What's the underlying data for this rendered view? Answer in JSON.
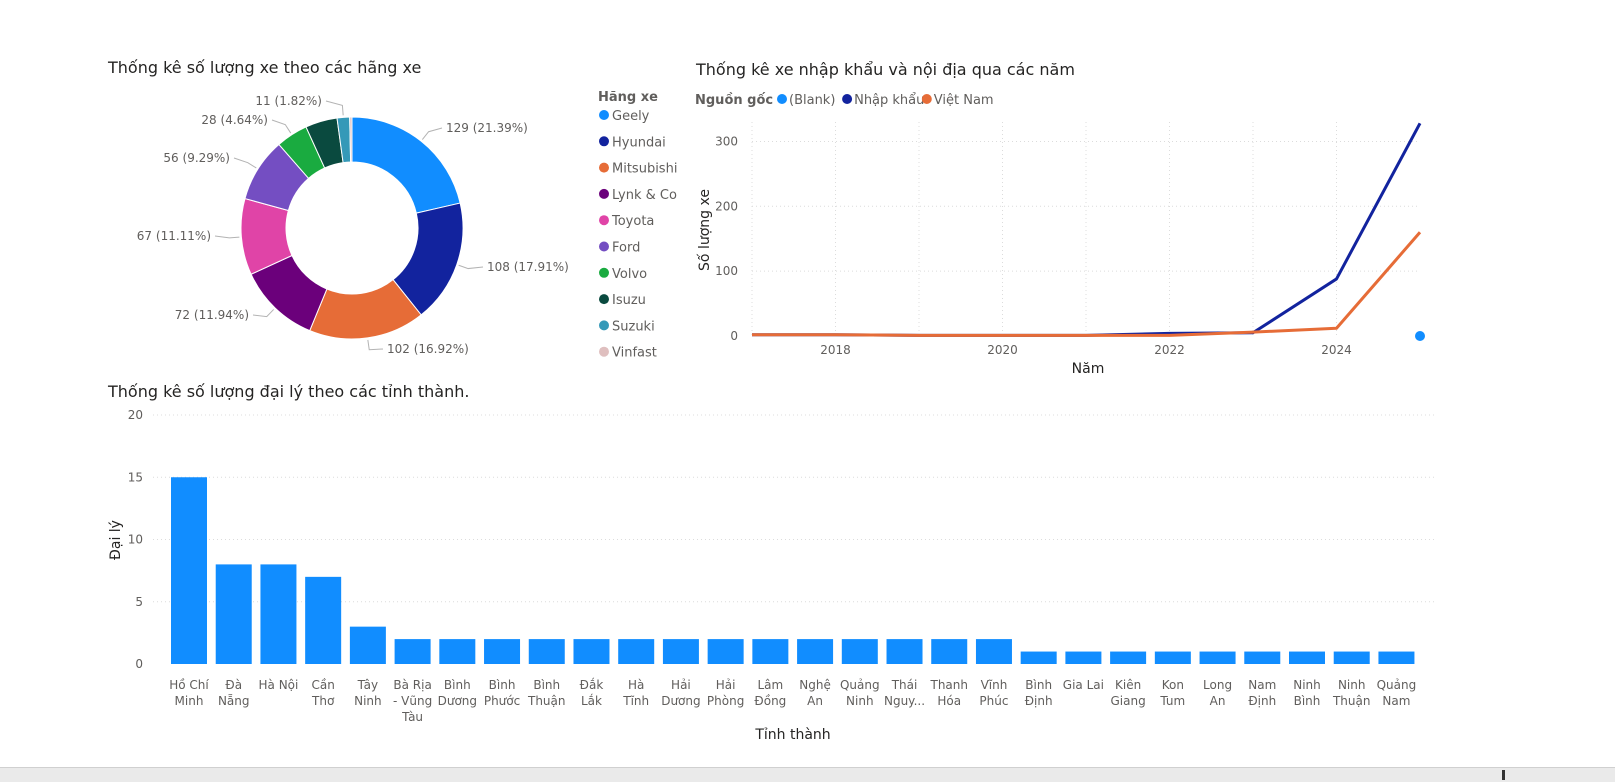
{
  "donut_title": "Thống kê số lượng xe theo các hãng xe",
  "line_title": "Thống kê xe nhập khẩu và nội địa qua các năm",
  "bar_title": "Thống kê số lượng đại lý theo các tỉnh thành.",
  "chart_data": [
    {
      "type": "pie",
      "title": "Thống kê số lượng xe theo các hãng xe",
      "legend_title": "Hãng xe",
      "legend_position": "right",
      "slices": [
        {
          "name": "Geely",
          "value": 129,
          "label": "129 (21.39%)",
          "color": "#118DFF"
        },
        {
          "name": "Hyundai",
          "value": 108,
          "label": "108 (17.91%)",
          "color": "#12239E"
        },
        {
          "name": "Mitsubishi",
          "value": 102,
          "label": "102 (16.92%)",
          "color": "#E66C37"
        },
        {
          "name": "Lynk & Co",
          "value": 72,
          "label": "72 (11.94%)",
          "color": "#6B007B"
        },
        {
          "name": "Toyota",
          "value": 67,
          "label": "67 (11.11%)",
          "color": "#E044A7"
        },
        {
          "name": "Ford",
          "value": 56,
          "label": "56 (9.29%)",
          "color": "#744EC2"
        },
        {
          "name": "Volvo",
          "value": 28,
          "label": "28 (4.64%)",
          "color": "#1AAB40"
        },
        {
          "name": "Isuzu",
          "value": 28,
          "label": "",
          "color": "#0A4A3F"
        },
        {
          "name": "Suzuki",
          "value": 11,
          "label": "11 (1.82%)",
          "color": "#3599B8"
        },
        {
          "name": "Vinfast",
          "value": 2,
          "label": "",
          "color": "#DFBFBF"
        }
      ]
    },
    {
      "type": "line",
      "title": "Thống kê xe nhập khẩu và nội địa qua các năm",
      "xlabel": "Năm",
      "ylabel": "Số lượng xe",
      "legend_title": "Nguồn gốc",
      "legend_position": "top-left",
      "xlim": [
        2017,
        2025
      ],
      "ylim": [
        0,
        330
      ],
      "xticks": [
        "2018",
        "2020",
        "2022",
        "2024"
      ],
      "xtick_values": [
        2018,
        2020,
        2022,
        2024
      ],
      "yticks": [
        "0",
        "100",
        "200",
        "300"
      ],
      "ytick_values": [
        0,
        100,
        200,
        300
      ],
      "grid": true,
      "series": [
        {
          "name": "(Blank)",
          "color": "#118DFF",
          "x": [
            2025
          ],
          "y": [
            0
          ],
          "marker_only": true
        },
        {
          "name": "Nhập khẩu",
          "color": "#12239E",
          "x": [
            2017,
            2018,
            2019,
            2020,
            2021,
            2022,
            2023,
            2024,
            2025
          ],
          "y": [
            2,
            2,
            1,
            1,
            1,
            4,
            5,
            88,
            328
          ]
        },
        {
          "name": "Việt Nam",
          "color": "#E66C37",
          "x": [
            2017,
            2018,
            2019,
            2020,
            2021,
            2022,
            2023,
            2024,
            2025
          ],
          "y": [
            2,
            2,
            1,
            1,
            1,
            1,
            6,
            12,
            160
          ]
        }
      ]
    },
    {
      "type": "bar",
      "title": "Thống kê số lượng đại lý theo các tỉnh thành.",
      "xlabel": "Tỉnh thành",
      "ylabel": "Đại lý",
      "ylim": [
        0,
        20
      ],
      "yticks": [
        "0",
        "5",
        "10",
        "15",
        "20"
      ],
      "ytick_values": [
        0,
        5,
        10,
        15,
        20
      ],
      "grid": true,
      "color": "#118DFF",
      "categories": [
        [
          "Hồ Chí",
          "Minh"
        ],
        [
          "Đà",
          "Nẵng"
        ],
        [
          "Hà Nội"
        ],
        [
          "Cần",
          "Thơ"
        ],
        [
          "Tây",
          "Ninh"
        ],
        [
          "Bà Rịa",
          "- Vũng",
          "Tàu"
        ],
        [
          "Bình",
          "Dương"
        ],
        [
          "Bình",
          "Phước"
        ],
        [
          "Bình",
          "Thuận"
        ],
        [
          "Đắk",
          "Lắk"
        ],
        [
          "Hà",
          "Tĩnh"
        ],
        [
          "Hải",
          "Dương"
        ],
        [
          "Hải",
          "Phòng"
        ],
        [
          "Lâm",
          "Đồng"
        ],
        [
          "Nghệ",
          "An"
        ],
        [
          "Quảng",
          "Ninh"
        ],
        [
          "Thái",
          "Nguy..."
        ],
        [
          "Thanh",
          "Hóa"
        ],
        [
          "Vĩnh",
          "Phúc"
        ],
        [
          "Bình",
          "Định"
        ],
        [
          "Gia Lai"
        ],
        [
          "Kiên",
          "Giang"
        ],
        [
          "Kon",
          "Tum"
        ],
        [
          "Long",
          "An"
        ],
        [
          "Nam",
          "Định"
        ],
        [
          "Ninh",
          "Bình"
        ],
        [
          "Ninh",
          "Thuận"
        ],
        [
          "Quảng",
          "Nam"
        ]
      ],
      "values": [
        15,
        8,
        8,
        7,
        3,
        2,
        2,
        2,
        2,
        2,
        2,
        2,
        2,
        2,
        2,
        2,
        2,
        2,
        2,
        1,
        1,
        1,
        1,
        1,
        1,
        1,
        1,
        1
      ]
    }
  ]
}
